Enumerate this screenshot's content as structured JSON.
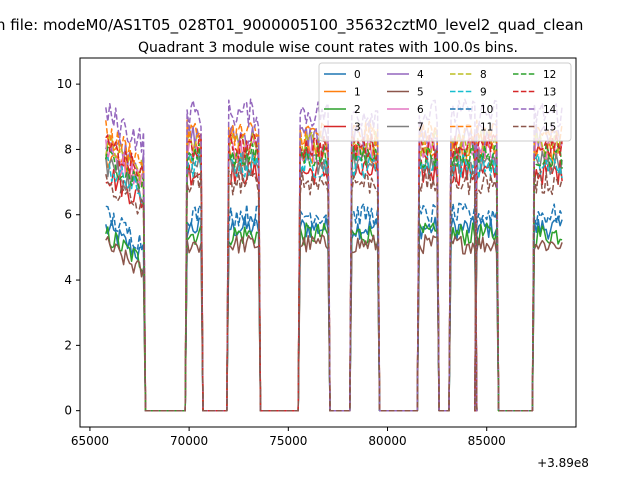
{
  "chart_data": {
    "type": "line",
    "suptitle": "n file: modeM0/AS1T05_028T01_9000005100_35632cztM0_level2_quad_clean",
    "title": "Quadrant 3 module wise count rates with 100.0s bins.",
    "xlabel": "",
    "ylabel": "",
    "x_offset_label": "+3.89e8",
    "xlim": [
      64500,
      89500
    ],
    "ylim": [
      -0.5,
      10.8
    ],
    "xticks": [
      {
        "value": 65000,
        "label": "65000"
      },
      {
        "value": 70000,
        "label": "70000"
      },
      {
        "value": 75000,
        "label": "75000"
      },
      {
        "value": 80000,
        "label": "80000"
      },
      {
        "value": 85000,
        "label": "85000"
      }
    ],
    "yticks": [
      {
        "value": 0,
        "label": "0"
      },
      {
        "value": 2,
        "label": "2"
      },
      {
        "value": 4,
        "label": "4"
      },
      {
        "value": 6,
        "label": "6"
      },
      {
        "value": 8,
        "label": "8"
      },
      {
        "value": 10,
        "label": "10"
      }
    ],
    "grid": false,
    "legend_position": "top-right",
    "legend_columns": 4,
    "on_segments": [
      [
        65800,
        67700
      ],
      [
        69900,
        70600
      ],
      [
        72000,
        73500
      ],
      [
        75600,
        77000
      ],
      [
        78200,
        79500
      ],
      [
        81600,
        82500
      ],
      [
        83200,
        84400
      ],
      [
        84500,
        85500
      ],
      [
        87400,
        88800
      ]
    ],
    "series": [
      {
        "name": "0",
        "color": "#1f77b4",
        "dash": "solid",
        "level": 5.6,
        "noise": 0.35
      },
      {
        "name": "1",
        "color": "#ff7f0e",
        "dash": "solid",
        "level": 7.9,
        "noise": 0.4
      },
      {
        "name": "2",
        "color": "#2ca02c",
        "dash": "solid",
        "level": 5.4,
        "noise": 0.35
      },
      {
        "name": "3",
        "color": "#d62728",
        "dash": "solid",
        "level": 7.3,
        "noise": 0.4
      },
      {
        "name": "4",
        "color": "#9467bd",
        "dash": "solid",
        "level": 8.4,
        "noise": 0.4
      },
      {
        "name": "5",
        "color": "#8c564b",
        "dash": "solid",
        "level": 5.1,
        "noise": 0.3
      },
      {
        "name": "6",
        "color": "#e377c2",
        "dash": "solid",
        "level": 8.0,
        "noise": 0.4
      },
      {
        "name": "7",
        "color": "#7f7f7f",
        "dash": "solid",
        "level": 7.6,
        "noise": 0.4
      },
      {
        "name": "8",
        "color": "#bcbd22",
        "dash": "dashed",
        "level": 8.2,
        "noise": 0.4
      },
      {
        "name": "9",
        "color": "#17becf",
        "dash": "dashed",
        "level": 7.5,
        "noise": 0.4
      },
      {
        "name": "10",
        "color": "#1f77b4",
        "dash": "dashed",
        "level": 6.0,
        "noise": 0.35
      },
      {
        "name": "11",
        "color": "#ff7f0e",
        "dash": "dashed",
        "level": 8.5,
        "noise": 0.4
      },
      {
        "name": "12",
        "color": "#2ca02c",
        "dash": "dashed",
        "level": 7.8,
        "noise": 0.4
      },
      {
        "name": "13",
        "color": "#d62728",
        "dash": "dashed",
        "level": 8.1,
        "noise": 0.4
      },
      {
        "name": "14",
        "color": "#9467bd",
        "dash": "dashed",
        "level": 9.1,
        "noise": 0.45
      },
      {
        "name": "15",
        "color": "#8c564b",
        "dash": "dashed",
        "level": 7.0,
        "noise": 0.4
      }
    ]
  }
}
